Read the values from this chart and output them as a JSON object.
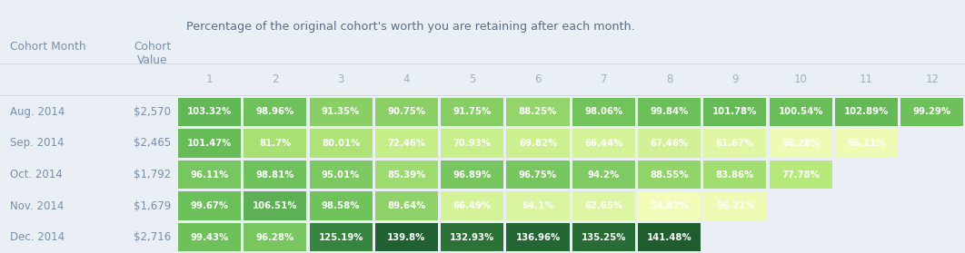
{
  "title": "Percentage of the original cohort's worth you are retaining after each month.",
  "col1_header": "Cohort Month",
  "col2_header": "Cohort\nValue",
  "col_numbers": [
    1,
    2,
    3,
    4,
    5,
    6,
    7,
    8,
    9,
    10,
    11,
    12
  ],
  "rows": [
    {
      "month": "Aug. 2014",
      "value": "$2,570",
      "data": [
        103.32,
        98.96,
        91.35,
        90.75,
        91.75,
        88.25,
        98.06,
        99.84,
        101.78,
        100.54,
        102.89,
        99.29
      ]
    },
    {
      "month": "Sep. 2014",
      "value": "$2,465",
      "data": [
        101.47,
        81.7,
        80.01,
        72.46,
        70.93,
        69.82,
        66.44,
        67.46,
        61.67,
        56.28,
        56.11,
        null
      ]
    },
    {
      "month": "Oct. 2014",
      "value": "$1,792",
      "data": [
        96.11,
        98.81,
        95.01,
        85.39,
        96.89,
        96.75,
        94.2,
        88.55,
        83.86,
        77.78,
        null,
        null
      ]
    },
    {
      "month": "Nov. 2014",
      "value": "$1,679",
      "data": [
        99.67,
        106.51,
        98.58,
        89.64,
        66.49,
        64.1,
        62.65,
        54.82,
        56.21,
        null,
        null,
        null
      ]
    },
    {
      "month": "Dec. 2014",
      "value": "$2,716",
      "data": [
        99.43,
        96.28,
        125.19,
        139.8,
        132.93,
        136.96,
        135.25,
        141.48,
        null,
        null,
        null,
        null
      ]
    }
  ],
  "bg_color": "#eaeef5",
  "cell_text_color": "#ffffff",
  "header_text_color": "#a0afc0",
  "label_text_color": "#7a8fa8",
  "title_color": "#5a6e82",
  "color_stops": [
    [
      0.0,
      [
        0.95,
        0.99,
        0.72
      ]
    ],
    [
      0.25,
      [
        0.72,
        0.91,
        0.48
      ]
    ],
    [
      0.5,
      [
        0.42,
        0.75,
        0.35
      ]
    ],
    [
      0.75,
      [
        0.23,
        0.54,
        0.26
      ]
    ],
    [
      1.0,
      [
        0.1,
        0.33,
        0.17
      ]
    ]
  ],
  "color_lo": 55.0,
  "color_hi": 145.0
}
